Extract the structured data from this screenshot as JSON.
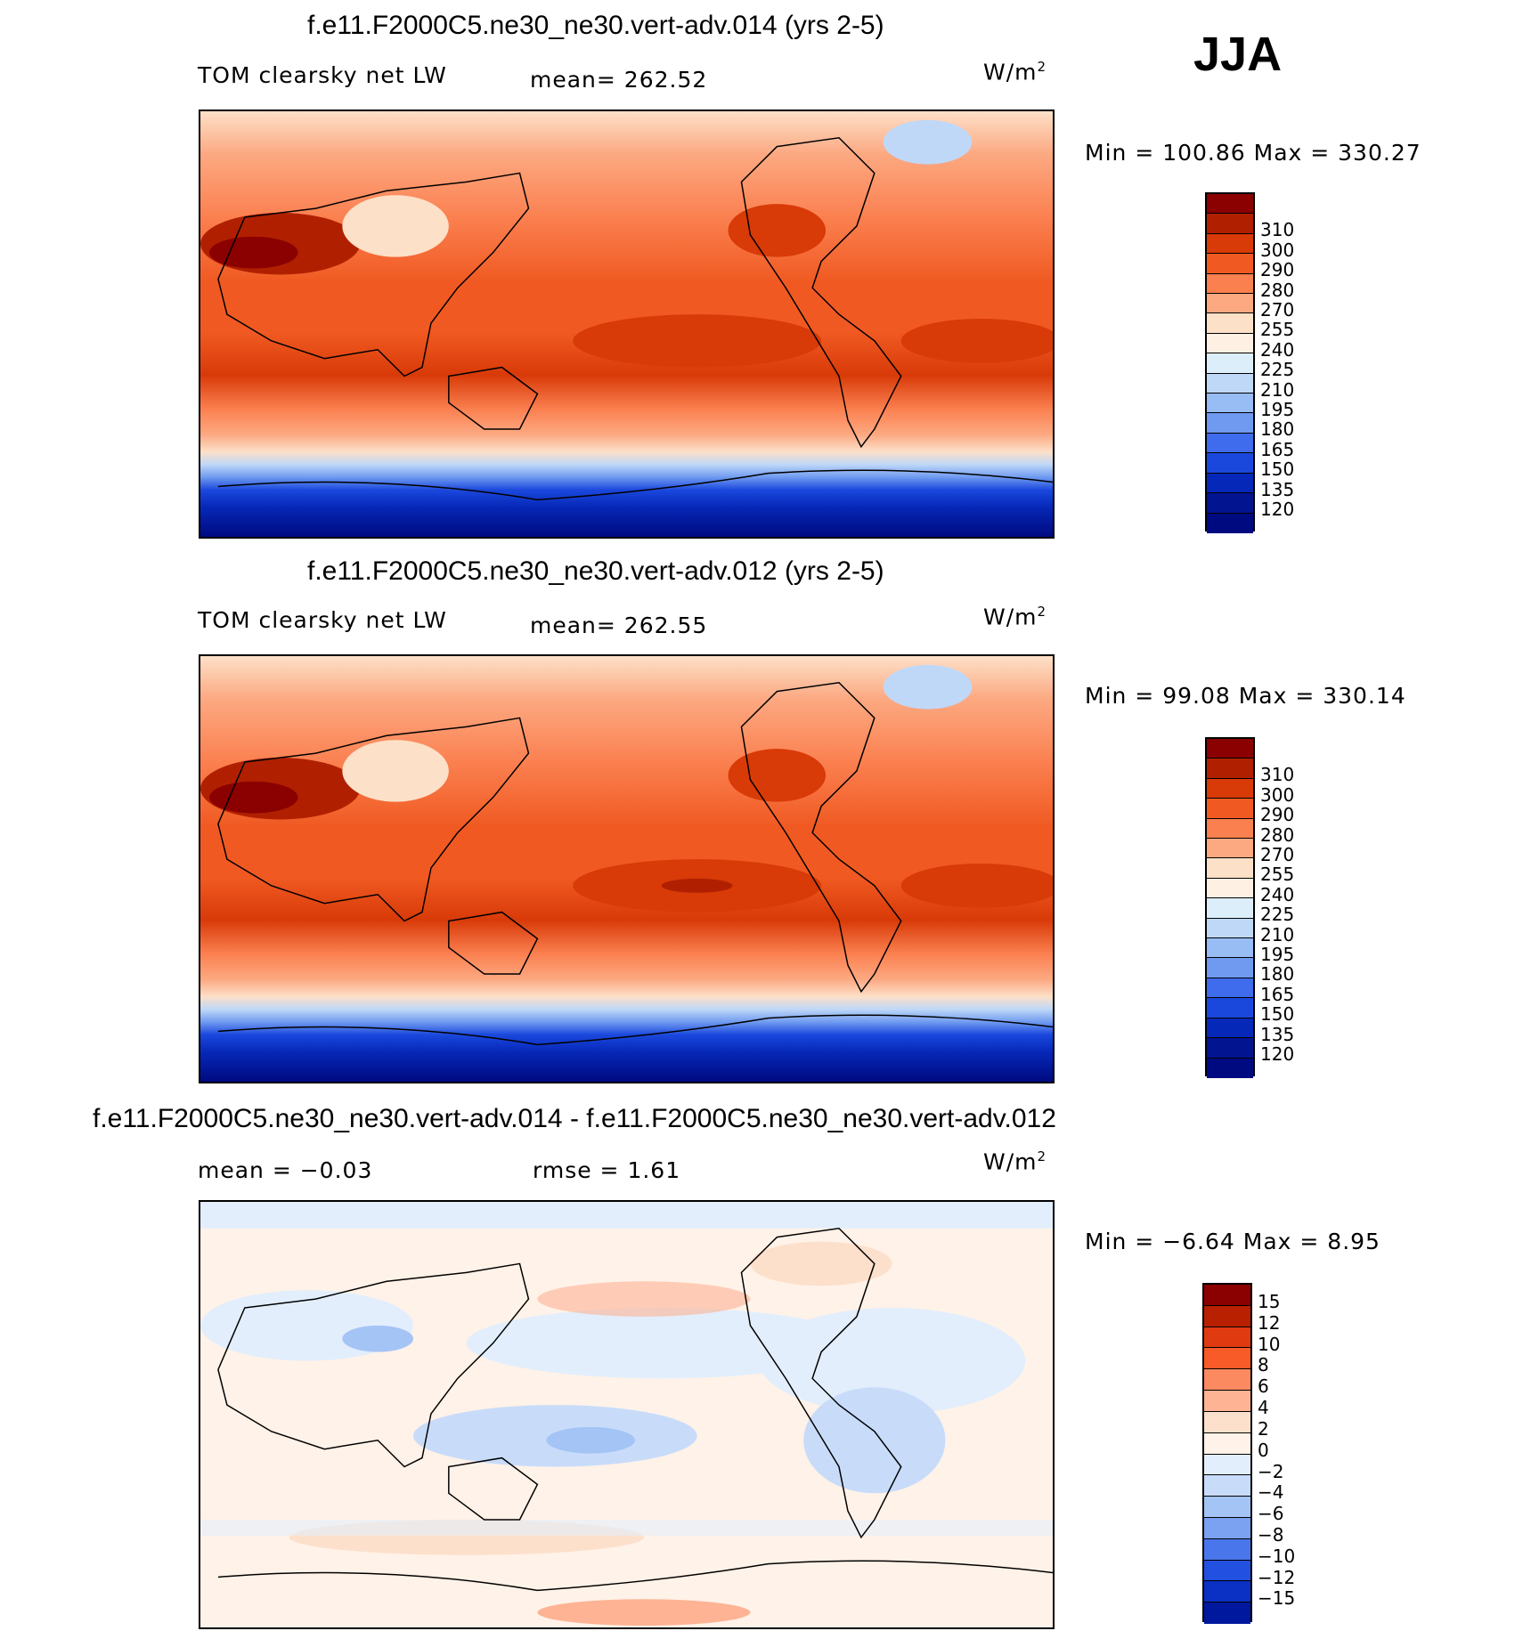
{
  "season": "JJA",
  "units_base": "W/m",
  "units_exp": "2",
  "panels": [
    {
      "title": "f.e11.F2000C5.ne30_ne30.vert-adv.014 (yrs 2-5)",
      "variable": "TOM clearsky net LW",
      "stat": "mean= 262.52",
      "minmax": "Min =  100.86 Max =  330.27",
      "colorbar": {
        "colors": [
          "#8b0000",
          "#b02000",
          "#d83a08",
          "#f05a22",
          "#fb8050",
          "#fca982",
          "#fde0c8",
          "#fff0e4",
          "#ddeefb",
          "#bfd8f8",
          "#98bcf4",
          "#6f9af0",
          "#3f6cec",
          "#1a48dd",
          "#0628b8",
          "#021490",
          "#000a80"
        ],
        "ticks": [
          "310",
          "300",
          "290",
          "280",
          "270",
          "255",
          "240",
          "225",
          "210",
          "195",
          "180",
          "165",
          "150",
          "135",
          "120"
        ]
      }
    },
    {
      "title": "f.e11.F2000C5.ne30_ne30.vert-adv.012 (yrs 2-5)",
      "variable": "TOM clearsky net LW",
      "stat": "mean= 262.55",
      "minmax": "Min =   99.08 Max =  330.14",
      "colorbar": {
        "colors": [
          "#8b0000",
          "#b02000",
          "#d83a08",
          "#f05a22",
          "#fb8050",
          "#fca982",
          "#fde0c8",
          "#fff0e4",
          "#ddeefb",
          "#bfd8f8",
          "#98bcf4",
          "#6f9af0",
          "#3f6cec",
          "#1a48dd",
          "#0628b8",
          "#021490",
          "#000a80"
        ],
        "ticks": [
          "310",
          "300",
          "290",
          "280",
          "270",
          "255",
          "240",
          "225",
          "210",
          "195",
          "180",
          "165",
          "150",
          "135",
          "120"
        ]
      }
    },
    {
      "title": "f.e11.F2000C5.ne30_ne30.vert-adv.014 - f.e11.F2000C5.ne30_ne30.vert-adv.012",
      "stat_mean": "mean =   −0.03",
      "stat_rmse": "rmse =     1.61",
      "minmax": "Min =   −6.64 Max =     8.95",
      "colorbar": {
        "colors": [
          "#8b0000",
          "#b82000",
          "#e03a10",
          "#f85a28",
          "#fc8a60",
          "#fdb394",
          "#fde0cc",
          "#fff2e8",
          "#e2eefc",
          "#c8dcfa",
          "#a4c4f6",
          "#7aa2f0",
          "#4a76ec",
          "#2250e0",
          "#0a30c4",
          "#00189e"
        ],
        "ticks": [
          "15",
          "12",
          "10",
          "8",
          "6",
          "4",
          "2",
          "0",
          "−2",
          "−4",
          "−6",
          "−8",
          "−10",
          "−12",
          "−15"
        ]
      }
    }
  ]
}
